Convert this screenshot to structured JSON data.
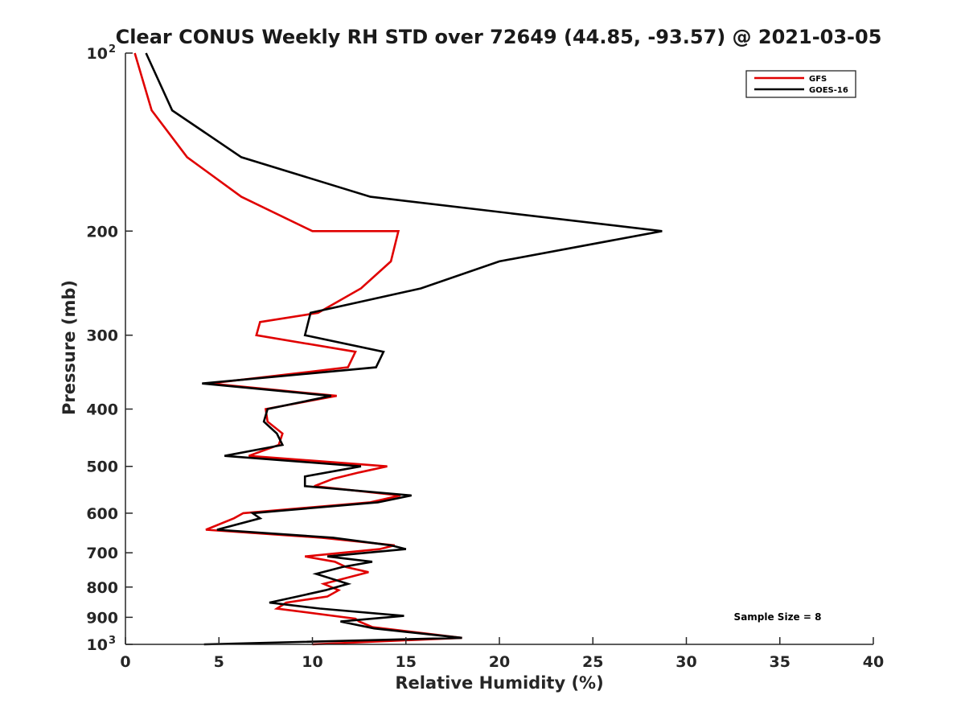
{
  "chart_data": {
    "type": "line",
    "title": "Clear CONUS Weekly RH STD over 72649 (44.85, -93.57) @ 2021-03-05",
    "xlabel": "Relative Humidity (%)",
    "ylabel": "Pressure (mb)",
    "xlim": [
      0,
      40
    ],
    "ylim": [
      100,
      1000
    ],
    "y_scale": "log",
    "y_reversed": true,
    "grid": false,
    "legend_position": "top-right",
    "x_ticks": [
      "0",
      "5",
      "10",
      "15",
      "20",
      "25",
      "30",
      "35",
      "40"
    ],
    "y_ticks": [
      {
        "value": 100,
        "label": "10",
        "exp": "2"
      },
      {
        "value": 200,
        "label": "200",
        "exp": ""
      },
      {
        "value": 300,
        "label": "300",
        "exp": ""
      },
      {
        "value": 400,
        "label": "400",
        "exp": ""
      },
      {
        "value": 500,
        "label": "500",
        "exp": ""
      },
      {
        "value": 600,
        "label": "600",
        "exp": ""
      },
      {
        "value": 700,
        "label": "700",
        "exp": ""
      },
      {
        "value": 800,
        "label": "800",
        "exp": ""
      },
      {
        "value": 900,
        "label": "900",
        "exp": ""
      },
      {
        "value": 1000,
        "label": "10",
        "exp": "3"
      }
    ],
    "annotation": "Sample Size = 8",
    "series": [
      {
        "name": "GFS",
        "color": "#e00000",
        "points": [
          [
            0.5,
            100
          ],
          [
            1.4,
            125
          ],
          [
            3.3,
            150
          ],
          [
            6.2,
            175
          ],
          [
            10,
            200
          ],
          [
            14.6,
            200
          ],
          [
            14.2,
            225
          ],
          [
            12.6,
            250
          ],
          [
            10.3,
            275
          ],
          [
            7.2,
            285
          ],
          [
            7.0,
            300
          ],
          [
            12.3,
            320
          ],
          [
            11.9,
            340
          ],
          [
            4.5,
            362
          ],
          [
            11.3,
            380
          ],
          [
            7.5,
            400
          ],
          [
            7.6,
            420
          ],
          [
            8.4,
            440
          ],
          [
            8.2,
            460
          ],
          [
            6.6,
            480
          ],
          [
            14,
            500
          ],
          [
            12.5,
            512
          ],
          [
            11.1,
            525
          ],
          [
            10.1,
            540
          ],
          [
            14.7,
            560
          ],
          [
            13.1,
            575
          ],
          [
            6.3,
            600
          ],
          [
            5.8,
            612
          ],
          [
            4.3,
            640
          ],
          [
            10.5,
            660
          ],
          [
            14.4,
            680
          ],
          [
            13.6,
            690
          ],
          [
            9.6,
            710
          ],
          [
            11.2,
            725
          ],
          [
            11.8,
            740
          ],
          [
            13,
            755
          ],
          [
            10.6,
            790
          ],
          [
            11.4,
            810
          ],
          [
            10.8,
            830
          ],
          [
            8.6,
            850
          ],
          [
            8.1,
            870
          ],
          [
            12.3,
            905
          ],
          [
            12.5,
            915
          ],
          [
            13.2,
            935
          ],
          [
            18,
            975
          ],
          [
            10,
            1000
          ]
        ]
      },
      {
        "name": "GOES-16",
        "color": "#000000",
        "points": [
          [
            1.1,
            100
          ],
          [
            2.5,
            125
          ],
          [
            6.2,
            150
          ],
          [
            13.1,
            175
          ],
          [
            28.7,
            200
          ],
          [
            20,
            225
          ],
          [
            15.8,
            250
          ],
          [
            9.9,
            275
          ],
          [
            9.6,
            300
          ],
          [
            13.8,
            320
          ],
          [
            13.4,
            340
          ],
          [
            4.1,
            362
          ],
          [
            11,
            380
          ],
          [
            7.6,
            400
          ],
          [
            7.4,
            420
          ],
          [
            8.1,
            440
          ],
          [
            8.4,
            460
          ],
          [
            5.3,
            480
          ],
          [
            12.6,
            500
          ],
          [
            9.6,
            520
          ],
          [
            9.6,
            540
          ],
          [
            15.3,
            560
          ],
          [
            13.5,
            575
          ],
          [
            6.8,
            600
          ],
          [
            7.2,
            612
          ],
          [
            4.9,
            640
          ],
          [
            11.1,
            660
          ],
          [
            14.2,
            680
          ],
          [
            15,
            690
          ],
          [
            10.8,
            710
          ],
          [
            13.2,
            725
          ],
          [
            11.6,
            740
          ],
          [
            10.2,
            760
          ],
          [
            11.9,
            790
          ],
          [
            10.7,
            810
          ],
          [
            9.2,
            830
          ],
          [
            7.7,
            850
          ],
          [
            10.4,
            870
          ],
          [
            14.9,
            895
          ],
          [
            11.5,
            915
          ],
          [
            13.3,
            940
          ],
          [
            18,
            975
          ],
          [
            4.2,
            1000
          ]
        ]
      }
    ]
  }
}
